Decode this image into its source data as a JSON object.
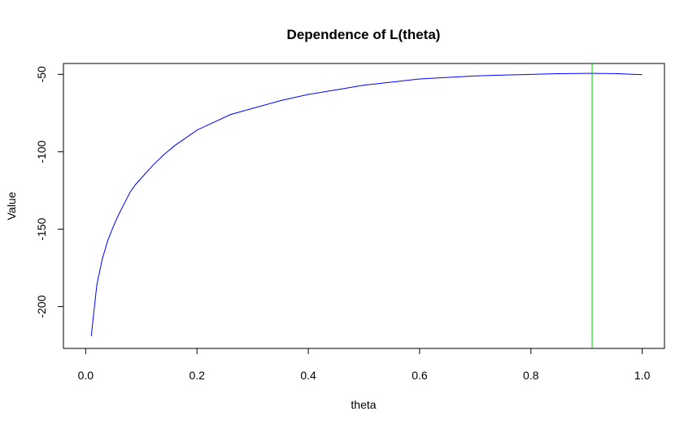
{
  "chart_data": {
    "type": "line",
    "title": "Dependence of L(theta)",
    "xlabel": "theta",
    "ylabel": "Value",
    "xlim": [
      -0.04,
      1.04
    ],
    "ylim": [
      -227,
      -43
    ],
    "xticks": [
      0.0,
      0.2,
      0.4,
      0.6,
      0.8,
      1.0
    ],
    "xtick_labels": [
      "0.0",
      "0.2",
      "0.4",
      "0.6",
      "0.8",
      "1.0"
    ],
    "yticks": [
      -200,
      -150,
      -100,
      -50
    ],
    "ytick_labels": [
      "-200",
      "-150",
      "-100",
      "-50"
    ],
    "grid": false,
    "legend": "none",
    "series": [
      {
        "color": "#0000ff",
        "x": [
          0.01,
          0.02,
          0.03,
          0.04,
          0.05,
          0.06,
          0.07,
          0.08,
          0.09,
          0.1,
          0.12,
          0.14,
          0.16,
          0.18,
          0.2,
          0.23,
          0.26,
          0.3,
          0.35,
          0.4,
          0.45,
          0.5,
          0.55,
          0.6,
          0.65,
          0.7,
          0.75,
          0.8,
          0.85,
          0.9,
          0.91,
          0.95,
          1.0
        ],
        "y": [
          -219,
          -186,
          -169,
          -157,
          -148,
          -140,
          -133,
          -126,
          -121,
          -117,
          -109,
          -102,
          -96,
          -91,
          -86,
          -81,
          -76,
          -72,
          -67,
          -63,
          -60,
          -57,
          -55,
          -53,
          -52,
          -51,
          -50.5,
          -50,
          -49.6,
          -49.4,
          -49.4,
          -49.5,
          -50.2
        ]
      }
    ],
    "vline": {
      "x": 0.91,
      "color": "#00cc00"
    }
  }
}
